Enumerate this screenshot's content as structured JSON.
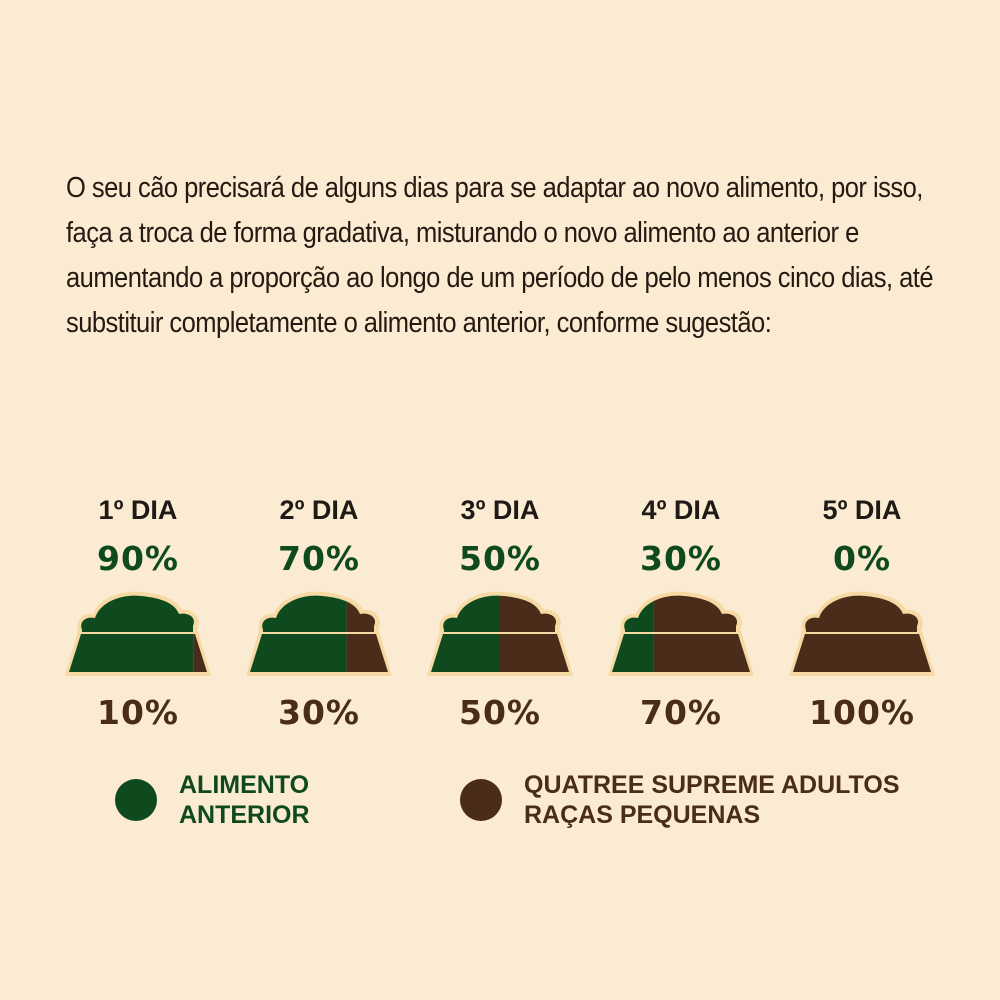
{
  "intro": "O seu cão precisará de alguns dias para se adaptar ao novo alimento, por isso, faça a troca de forma gradativa, misturando o novo alimento ao anterior e aumentando a proporção ao longo de um período de pelo menos cinco dias, até substituir completamente o alimento anterior, conforme sugestão:",
  "days": [
    {
      "label": "1º DIA",
      "previous": "90%",
      "new": "10%",
      "previous_fraction": 0.9
    },
    {
      "label": "2º DIA",
      "previous": "70%",
      "new": "30%",
      "previous_fraction": 0.7
    },
    {
      "label": "3º DIA",
      "previous": "50%",
      "new": "50%",
      "previous_fraction": 0.5
    },
    {
      "label": "4º DIA",
      "previous": "30%",
      "new": "70%",
      "previous_fraction": 0.3
    },
    {
      "label": "5º DIA",
      "previous": "0%",
      "new": "100%",
      "previous_fraction": 0.0
    }
  ],
  "legend": {
    "previous": {
      "line1": "ALIMENTO",
      "line2": "ANTERIOR",
      "color": "#0f4a1f"
    },
    "new": {
      "line1": "QUATREE SUPREME ADULTOS",
      "line2": "RAÇAS PEQUENAS",
      "color": "#4a2c1a"
    }
  }
}
